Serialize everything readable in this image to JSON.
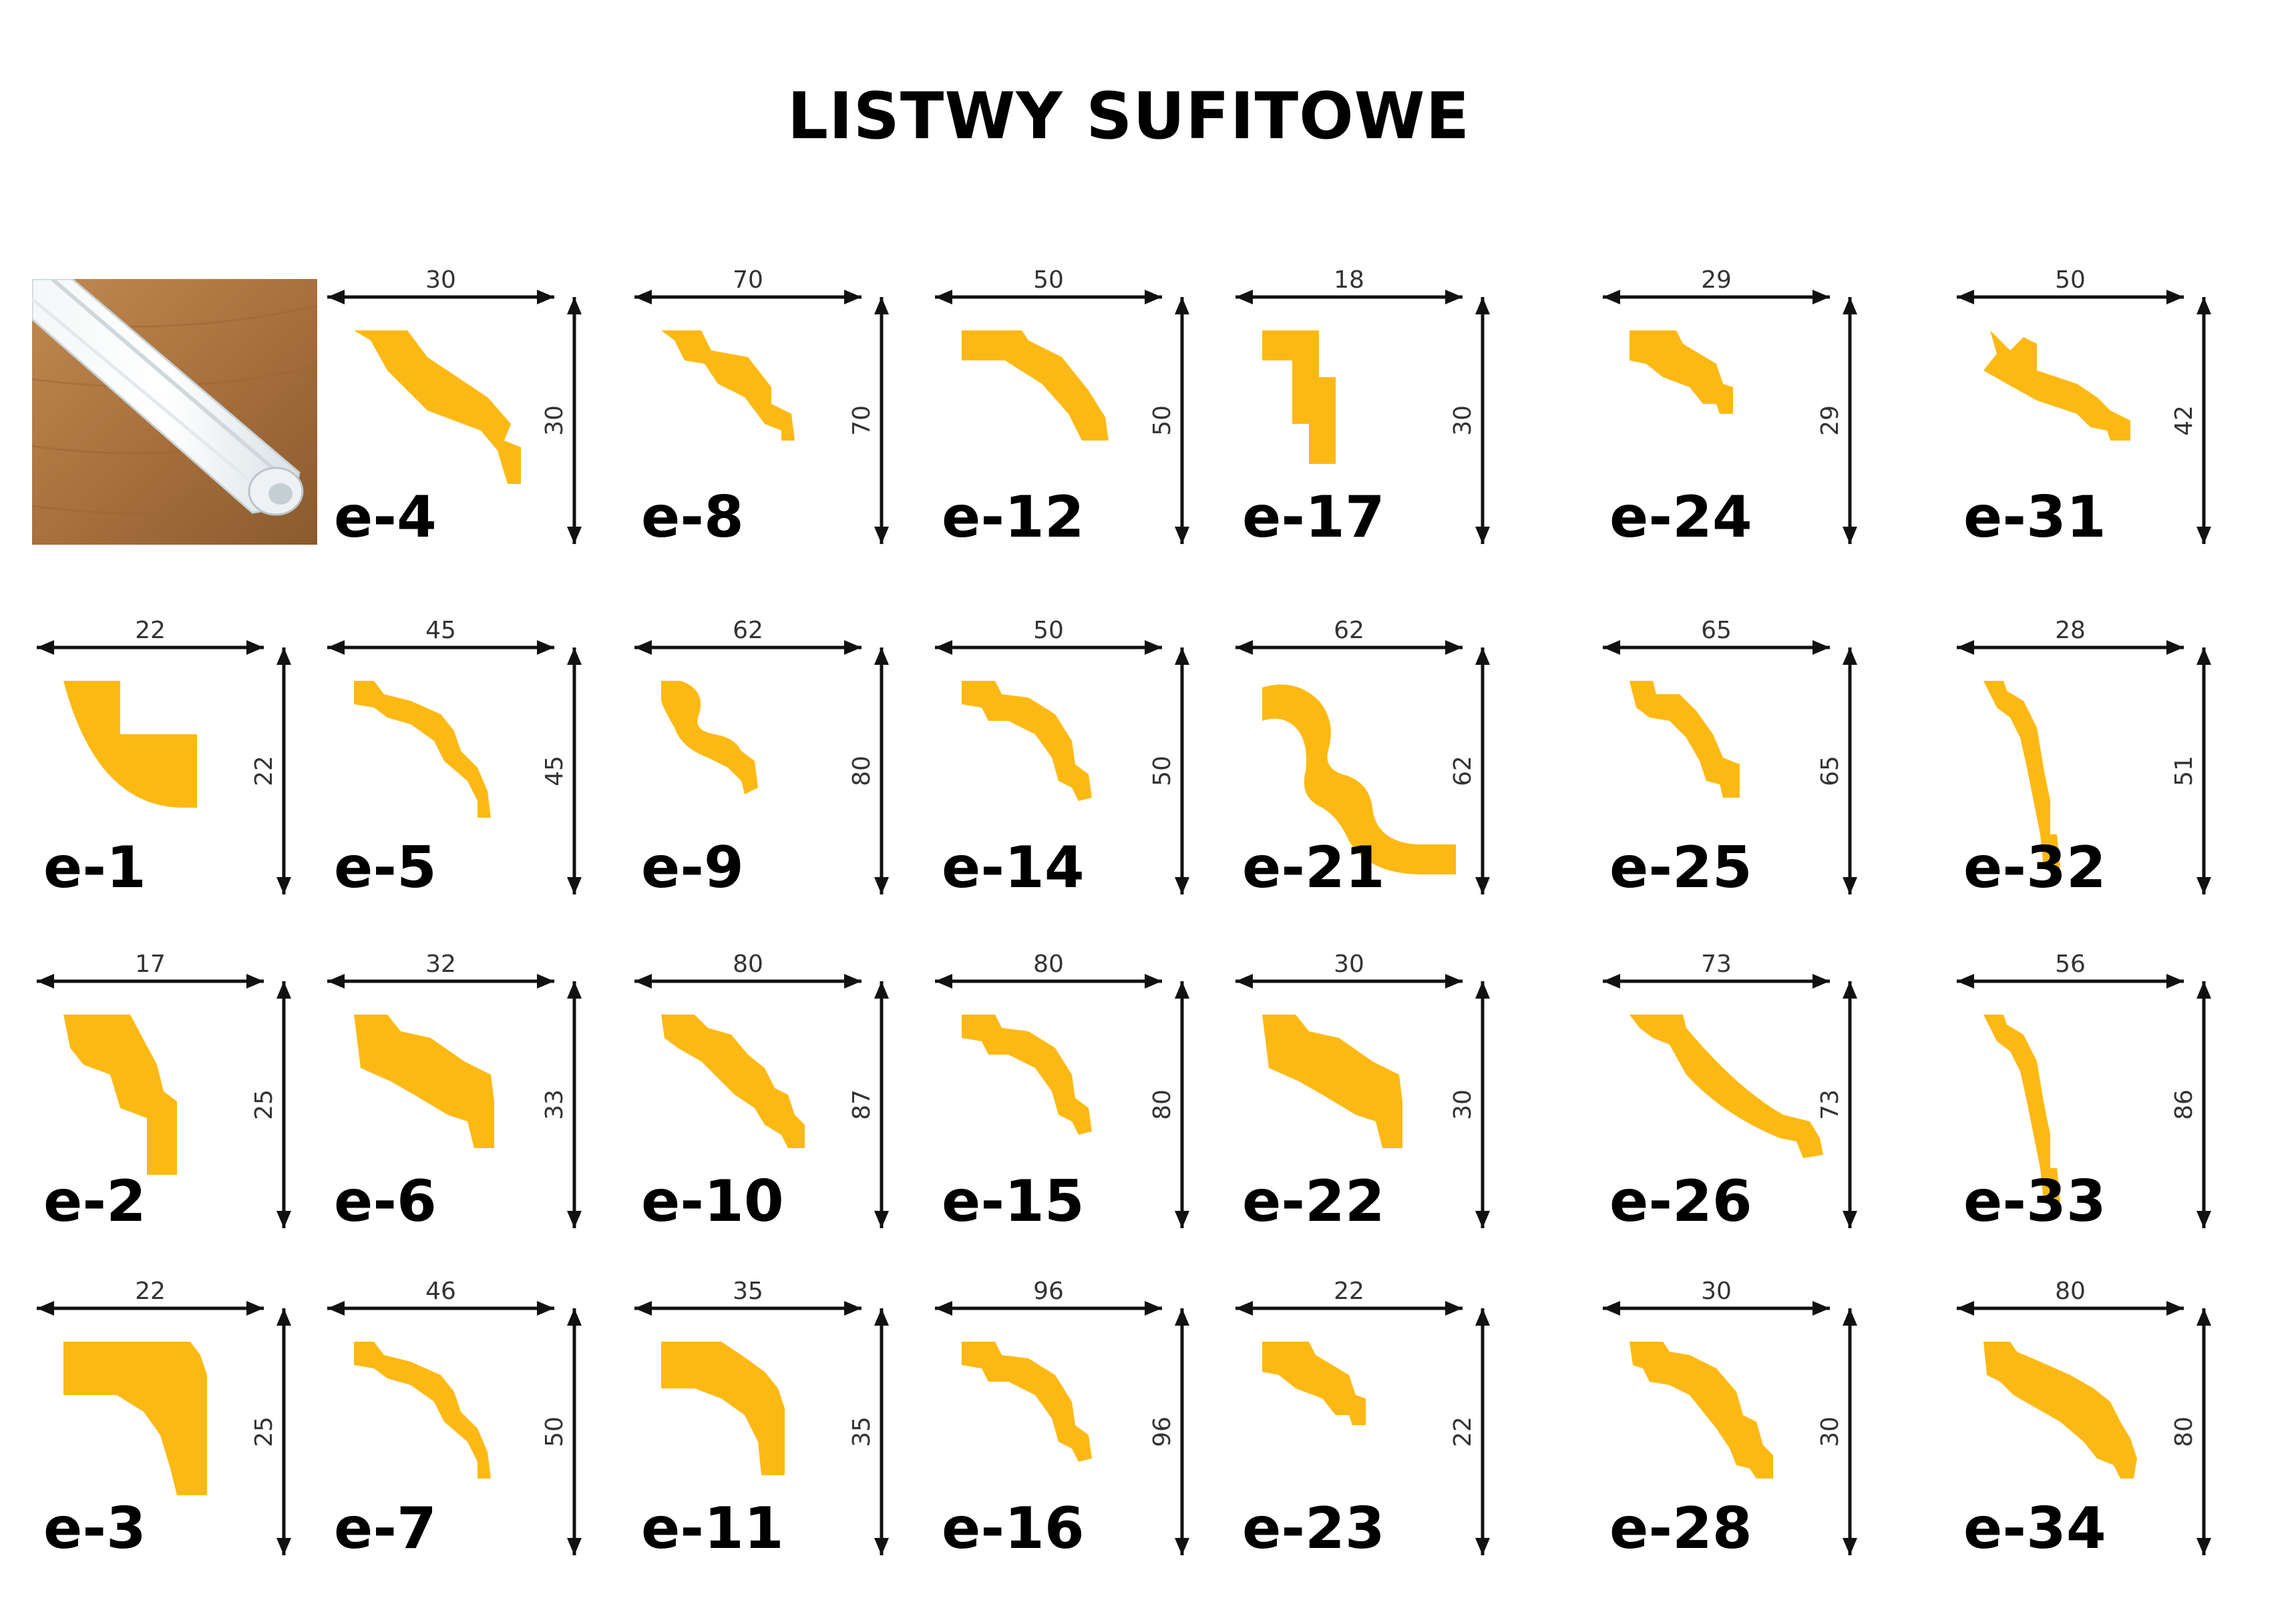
{
  "title": "LISTWY SUFITOWE",
  "colors": {
    "profile": "#FDB913",
    "arrow": "#111111",
    "text": "#000000"
  },
  "photo": {
    "description_icon": "white-polystyrene-molding-photo"
  },
  "profiles": [
    {
      "code": "e-4",
      "width": "30",
      "height": "30",
      "shape": 0
    },
    {
      "code": "e-8",
      "width": "70",
      "height": "70",
      "shape": 1
    },
    {
      "code": "e-12",
      "width": "50",
      "height": "50",
      "shape": 2
    },
    {
      "code": "e-17",
      "width": "18",
      "height": "30",
      "shape": 3
    },
    {
      "code": "e-24",
      "width": "29",
      "height": "29",
      "shape": 4
    },
    {
      "code": "e-31",
      "width": "50",
      "height": "42",
      "shape": 5
    },
    {
      "code": "e-1",
      "width": "22",
      "height": "22",
      "shape": 6
    },
    {
      "code": "e-5",
      "width": "45",
      "height": "45",
      "shape": 7
    },
    {
      "code": "e-9",
      "width": "62",
      "height": "80",
      "shape": 8
    },
    {
      "code": "e-14",
      "width": "50",
      "height": "50",
      "shape": 9
    },
    {
      "code": "e-21",
      "width": "62",
      "height": "62",
      "shape": 10
    },
    {
      "code": "e-25",
      "width": "65",
      "height": "65",
      "shape": 11
    },
    {
      "code": "e-32",
      "width": "28",
      "height": "51",
      "shape": 12
    },
    {
      "code": "e-2",
      "width": "17",
      "height": "25",
      "shape": 13
    },
    {
      "code": "e-6",
      "width": "32",
      "height": "33",
      "shape": 14
    },
    {
      "code": "e-10",
      "width": "80",
      "height": "87",
      "shape": 15
    },
    {
      "code": "e-15",
      "width": "80",
      "height": "80",
      "shape": 9
    },
    {
      "code": "e-22",
      "width": "30",
      "height": "30",
      "shape": 14
    },
    {
      "code": "e-26",
      "width": "73",
      "height": "73",
      "shape": 16
    },
    {
      "code": "e-33",
      "width": "56",
      "height": "86",
      "shape": 12
    },
    {
      "code": "e-3",
      "width": "22",
      "height": "25",
      "shape": 17
    },
    {
      "code": "e-7",
      "width": "46",
      "height": "50",
      "shape": 7
    },
    {
      "code": "e-11",
      "width": "35",
      "height": "35",
      "shape": 18
    },
    {
      "code": "e-16",
      "width": "96",
      "height": "96",
      "shape": 9
    },
    {
      "code": "e-23",
      "width": "22",
      "height": "22",
      "shape": 4
    },
    {
      "code": "e-28",
      "width": "30",
      "height": "30",
      "shape": 19
    },
    {
      "code": "e-34",
      "width": "80",
      "height": "80",
      "shape": 20
    }
  ]
}
